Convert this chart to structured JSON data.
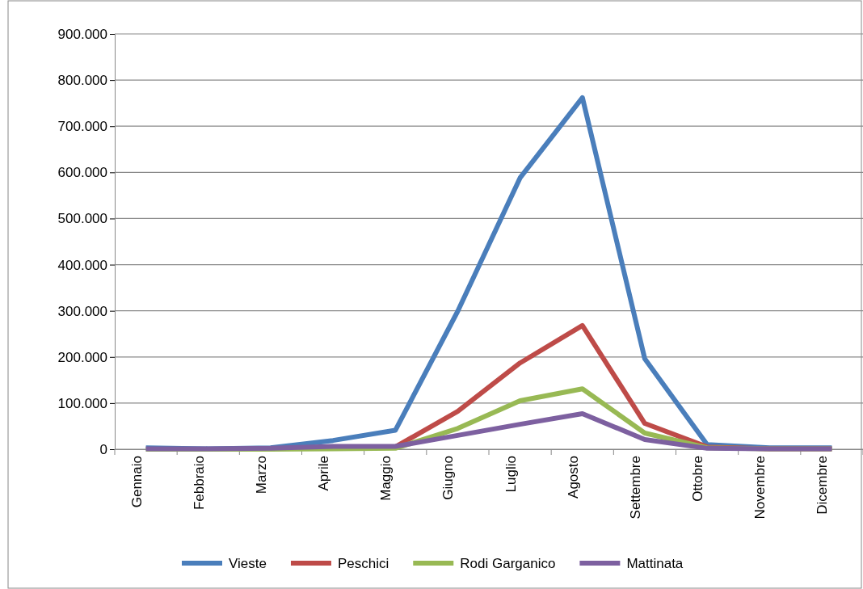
{
  "chart_data": {
    "type": "line",
    "categories": [
      "Gennaio",
      "Febbraio",
      "Marzo",
      "Aprile",
      "Maggio",
      "Giugno",
      "Luglio",
      "Agosto",
      "Settembre",
      "Ottobre",
      "Novembre",
      "Dicembre"
    ],
    "series": [
      {
        "name": "Vieste",
        "color": "#4a7ebb",
        "values": [
          3000,
          1000,
          3000,
          19000,
          41000,
          299000,
          588000,
          762000,
          196000,
          10000,
          3000,
          3000
        ]
      },
      {
        "name": "Peschici",
        "color": "#be4b48",
        "values": [
          null,
          null,
          null,
          2000,
          5000,
          82000,
          187000,
          268000,
          56000,
          5000,
          1000,
          1000
        ]
      },
      {
        "name": "Rodi Garganico",
        "color": "#98b954",
        "values": [
          0,
          0,
          0,
          1000,
          2000,
          45000,
          105000,
          131000,
          35000,
          3000,
          1000,
          1000
        ]
      },
      {
        "name": "Mattinata",
        "color": "#7d60a0",
        "values": [
          1000,
          1000,
          2000,
          6000,
          6000,
          30000,
          54000,
          77000,
          21000,
          2000,
          1000,
          1000
        ]
      }
    ],
    "ylim": [
      0,
      900000
    ],
    "yticks": [
      {
        "value": 0,
        "label": "0"
      },
      {
        "value": 100000,
        "label": "100.000"
      },
      {
        "value": 200000,
        "label": "200.000"
      },
      {
        "value": 300000,
        "label": "300.000"
      },
      {
        "value": 400000,
        "label": "400.000"
      },
      {
        "value": 500000,
        "label": "500.000"
      },
      {
        "value": 600000,
        "label": "600.000"
      },
      {
        "value": 700000,
        "label": "700.000"
      },
      {
        "value": 800000,
        "label": "800.000"
      },
      {
        "value": 900000,
        "label": "900.000"
      }
    ],
    "grid": "y",
    "legend": "bottom",
    "marker": "none",
    "line_style": "solid"
  }
}
